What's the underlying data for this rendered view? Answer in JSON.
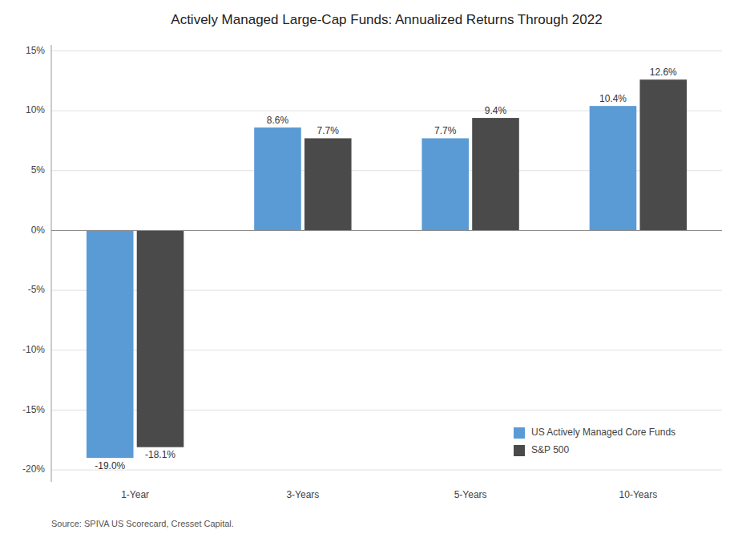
{
  "chart_data": {
    "type": "bar",
    "title": "Actively Managed Large-Cap Funds: Annualized Returns Through 2022",
    "categories": [
      "1-Year",
      "3-Years",
      "5-Years",
      "10-Years"
    ],
    "series": [
      {
        "name": "US Actively Managed Core Funds",
        "color": "#5B9BD5",
        "values": [
          -19.0,
          8.6,
          7.7,
          10.4
        ],
        "value_labels": [
          "-19.0%",
          "8.6%",
          "7.7%",
          "10.4%"
        ]
      },
      {
        "name": "S&P 500",
        "color": "#4A4A4A",
        "values": [
          -18.1,
          7.7,
          9.4,
          12.6
        ],
        "value_labels": [
          "-18.1%",
          "7.7%",
          "9.4%",
          "12.6%"
        ]
      }
    ],
    "ylim": [
      -21,
      15.5
    ],
    "yticks": [
      {
        "value": -20,
        "label": "-20%"
      },
      {
        "value": -15,
        "label": "-15%"
      },
      {
        "value": -10,
        "label": "-10%"
      },
      {
        "value": -5,
        "label": "-5%"
      },
      {
        "value": 0,
        "label": "0%"
      },
      {
        "value": 5,
        "label": "5%"
      },
      {
        "value": 10,
        "label": "10%"
      },
      {
        "value": 15,
        "label": "15%"
      }
    ],
    "grid": true,
    "data_labels": true,
    "legend": "lower right",
    "annotations": [
      "Source: SPIVA US Scorecard, Cresset Capital."
    ]
  }
}
